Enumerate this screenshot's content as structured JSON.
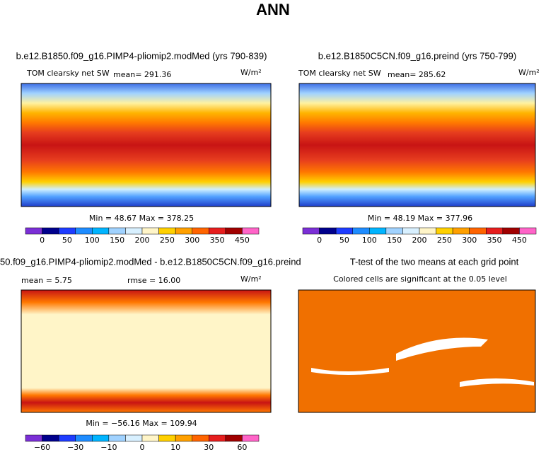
{
  "title": "ANN",
  "panels": [
    {
      "title": "b.e12.B1850.f09_g16.PIMP4-pliomip2.modMed (yrs 790-839)",
      "variable": "TOM clearsky net SW",
      "mean": "mean=  291.36",
      "units": "W/m²",
      "stats": "Min =  48.67 Max = 378.25",
      "colorbar": [
        "0",
        "50",
        "100",
        "150",
        "200",
        "250",
        "300",
        "350",
        "450"
      ]
    },
    {
      "title": "b.e12.B1850C5CN.f09_g16.preind (yrs 750-799)",
      "variable": "TOM clearsky net SW",
      "mean": "mean=  285.62",
      "units": "W/m²",
      "stats": "Min =  48.19 Max = 377.96",
      "colorbar": [
        "0",
        "50",
        "100",
        "150",
        "200",
        "250",
        "300",
        "350",
        "450"
      ]
    },
    {
      "title": "50.f09_g16.PIMP4-pliomip2.modMed - b.e12.B1850C5CN.f09_g16.preind",
      "mean": "mean =   5.75",
      "rmse": "rmse =  16.00",
      "units": "W/m²",
      "stats": "Min = −56.16 Max = 109.94",
      "colorbar": [
        "−60",
        "−30",
        "−10",
        "0",
        "10",
        "30",
        "60"
      ]
    },
    {
      "title": "T-test of the two means at each grid point",
      "subtitle": "Colored cells are significant at the 0.05 level"
    }
  ]
}
